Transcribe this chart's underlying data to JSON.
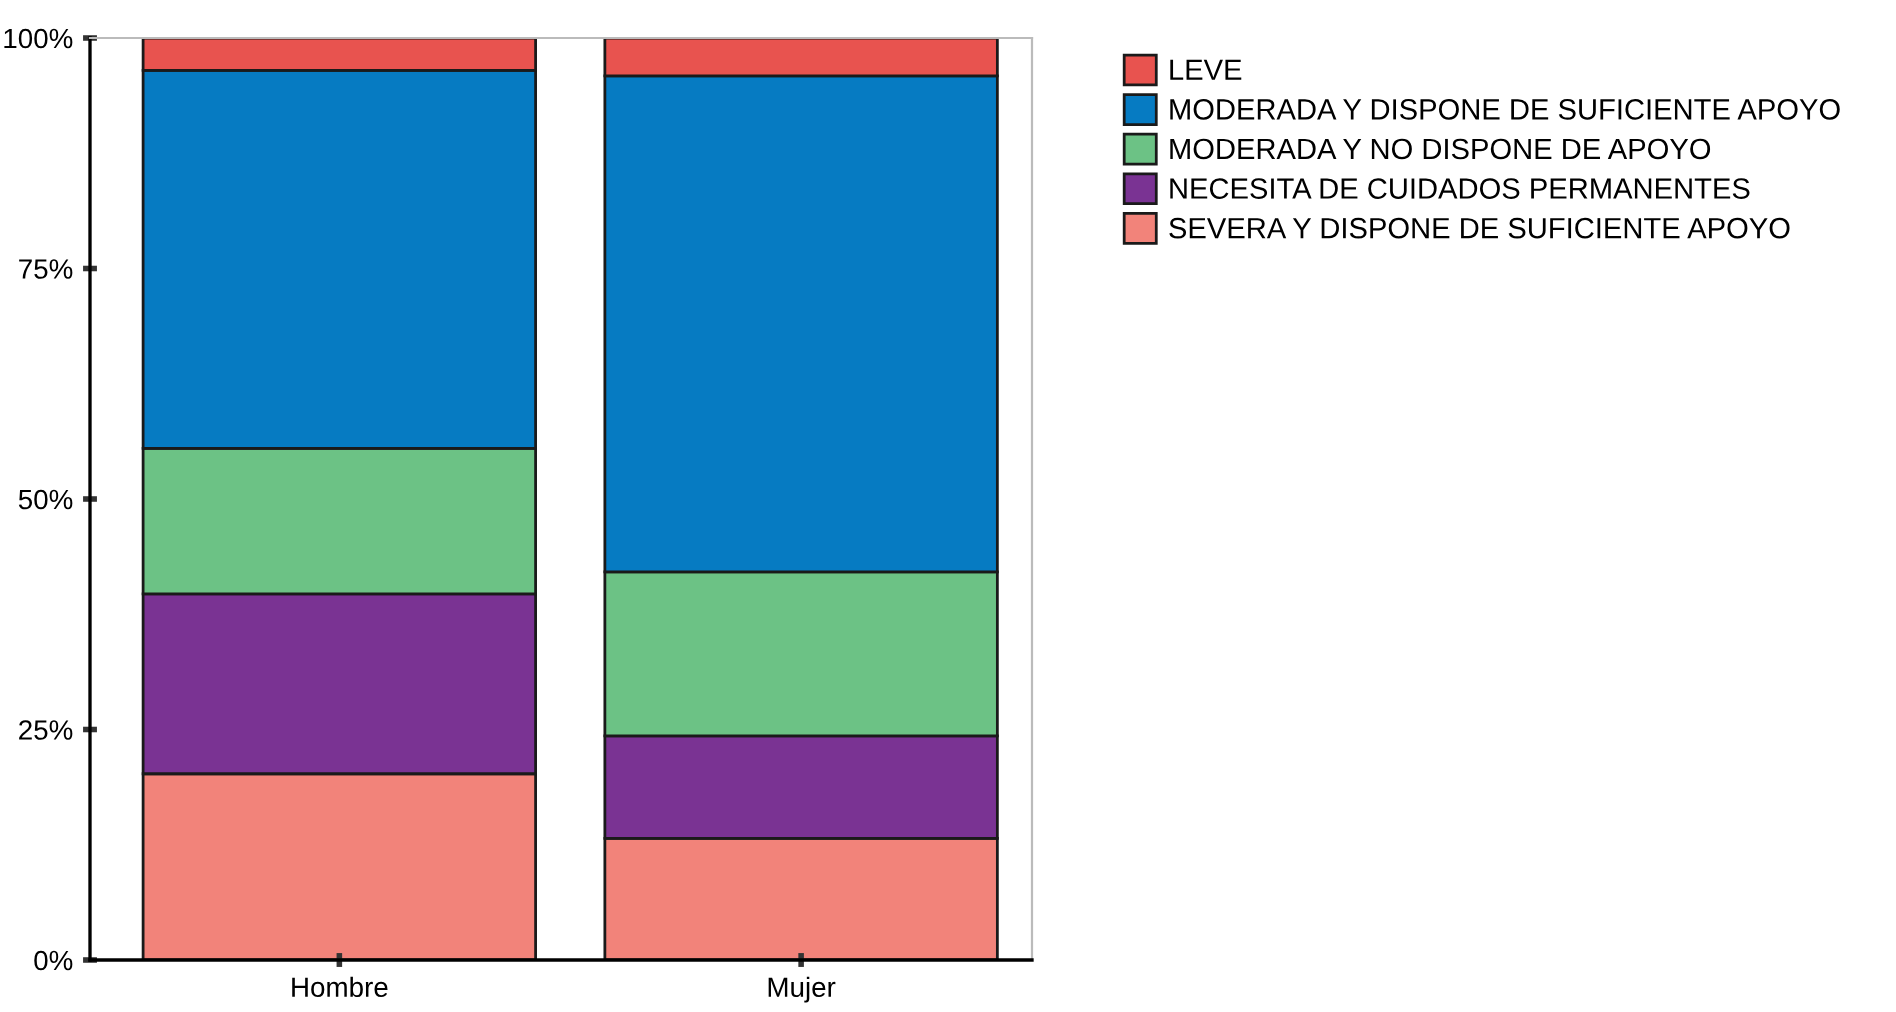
{
  "chart_data": {
    "type": "bar",
    "stacked": true,
    "categories": [
      "Hombre",
      "Mujer"
    ],
    "series": [
      {
        "name": "SEVERA Y DISPONE DE SUFICIENTE APOYO",
        "color": "#f2837a",
        "values": [
          20.2,
          13.2
        ]
      },
      {
        "name": "NECESITA DE CUIDADOS PERMANENTES",
        "color": "#7a3393",
        "values": [
          19.5,
          11.1
        ]
      },
      {
        "name": "MODERADA Y NO DISPONE DE APOYO",
        "color": "#6cc285",
        "values": [
          15.8,
          17.8
        ]
      },
      {
        "name": "MODERADA Y DISPONE DE SUFICIENTE APOYO",
        "color": "#067bc2",
        "values": [
          41.0,
          53.8
        ]
      },
      {
        "name": "LEVE",
        "color": "#e8534f",
        "values": [
          3.5,
          4.1
        ]
      }
    ],
    "ylim": [
      0,
      100
    ],
    "yticks": [
      {
        "value": 0,
        "label": "0%"
      },
      {
        "value": 25,
        "label": "25%"
      },
      {
        "value": 50,
        "label": "50%"
      },
      {
        "value": 75,
        "label": "75%"
      },
      {
        "value": 100,
        "label": "100%"
      }
    ],
    "grid": false,
    "legend": "right"
  }
}
